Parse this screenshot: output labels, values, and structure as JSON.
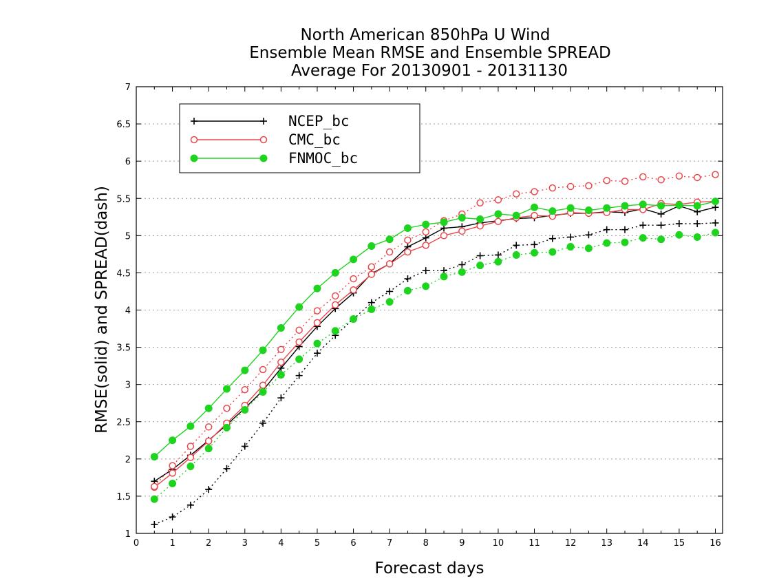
{
  "chart_data": {
    "type": "line",
    "title": [
      "North American 850hPa U Wind",
      "Ensemble Mean RMSE and Ensemble SPREAD",
      "Average For 20130901 - 20131130"
    ],
    "xlabel": "Forecast days",
    "ylabel": "RMSE(solid) and SPREAD(dash)",
    "xlim": [
      0,
      16.2
    ],
    "ylim": [
      1,
      7
    ],
    "xticks": [
      "0",
      "1",
      "2",
      "3",
      "4",
      "5",
      "6",
      "7",
      "8",
      "9",
      "10",
      "11",
      "12",
      "13",
      "14",
      "15",
      "16"
    ],
    "yticks": [
      "1",
      "1.5",
      "2",
      "2.5",
      "3",
      "3.5",
      "4",
      "4.5",
      "5",
      "5.5",
      "6",
      "6.5",
      "7"
    ],
    "grid": "horizontal-dotted",
    "legend_position": "top-left",
    "x": [
      0.5,
      1,
      1.5,
      2,
      2.5,
      3,
      3.5,
      4,
      4.5,
      5,
      5.5,
      6,
      6.5,
      7,
      7.5,
      8,
      8.5,
      9,
      9.5,
      10,
      10.5,
      11,
      11.5,
      12,
      12.5,
      13,
      13.5,
      14,
      14.5,
      15,
      15.5,
      16
    ],
    "series": [
      {
        "name": "NCEP_bc",
        "color": "#000000",
        "marker": "plus",
        "rmse": [
          1.7,
          1.86,
          2.05,
          2.25,
          2.46,
          2.68,
          2.92,
          3.22,
          3.51,
          3.78,
          4.02,
          4.23,
          4.49,
          4.62,
          4.85,
          4.97,
          5.1,
          5.12,
          5.17,
          5.2,
          5.23,
          5.24,
          5.27,
          5.3,
          5.3,
          5.32,
          5.31,
          5.36,
          5.29,
          5.4,
          5.32,
          5.38
        ],
        "spread": [
          1.12,
          1.22,
          1.38,
          1.59,
          1.87,
          2.17,
          2.48,
          2.82,
          3.12,
          3.42,
          3.66,
          3.88,
          4.1,
          4.25,
          4.42,
          4.53,
          4.53,
          4.61,
          4.73,
          4.74,
          4.87,
          4.88,
          4.96,
          4.98,
          5.01,
          5.08,
          5.08,
          5.14,
          5.14,
          5.16,
          5.16,
          5.17
        ]
      },
      {
        "name": "CMC_bc",
        "color": "#e8474b",
        "marker": "open-circle",
        "rmse": [
          1.62,
          1.81,
          2.02,
          2.24,
          2.48,
          2.72,
          2.99,
          3.3,
          3.57,
          3.83,
          4.07,
          4.27,
          4.48,
          4.62,
          4.78,
          4.87,
          5.0,
          5.06,
          5.13,
          5.19,
          5.24,
          5.27,
          5.26,
          5.31,
          5.3,
          5.31,
          5.35,
          5.35,
          5.43,
          5.42,
          5.45,
          5.46
        ],
        "spread": [
          1.63,
          1.91,
          2.17,
          2.43,
          2.68,
          2.93,
          3.2,
          3.47,
          3.73,
          3.99,
          4.19,
          4.42,
          4.58,
          4.78,
          4.94,
          5.05,
          5.2,
          5.29,
          5.44,
          5.48,
          5.56,
          5.59,
          5.64,
          5.66,
          5.67,
          5.74,
          5.73,
          5.79,
          5.75,
          5.8,
          5.78,
          5.82
        ]
      },
      {
        "name": "FNMOC_bc",
        "color": "#1ed41e",
        "marker": "filled-circle",
        "rmse": [
          2.03,
          2.25,
          2.44,
          2.68,
          2.94,
          3.19,
          3.46,
          3.76,
          4.04,
          4.29,
          4.5,
          4.68,
          4.86,
          4.95,
          5.1,
          5.15,
          5.18,
          5.24,
          5.22,
          5.29,
          5.27,
          5.38,
          5.33,
          5.37,
          5.34,
          5.37,
          5.4,
          5.42,
          5.4,
          5.41,
          5.4,
          5.46
        ],
        "spread": [
          1.46,
          1.67,
          1.9,
          2.14,
          2.42,
          2.66,
          2.9,
          3.13,
          3.34,
          3.55,
          3.72,
          3.88,
          4.01,
          4.11,
          4.26,
          4.32,
          4.45,
          4.51,
          4.6,
          4.65,
          4.74,
          4.77,
          4.78,
          4.85,
          4.83,
          4.9,
          4.91,
          4.97,
          4.95,
          5.01,
          4.98,
          5.04
        ]
      }
    ]
  }
}
